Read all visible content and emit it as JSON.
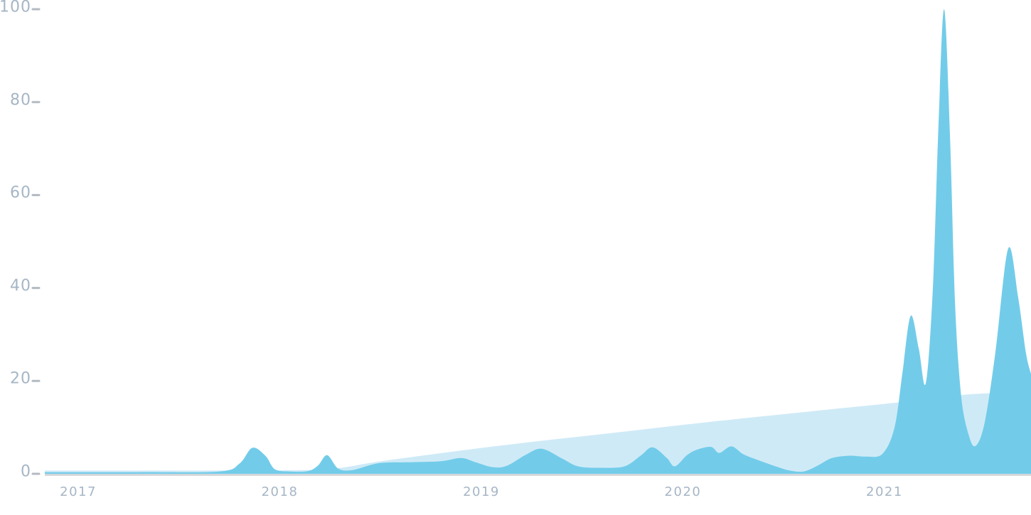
{
  "chart_data": {
    "type": "area",
    "title": "",
    "xlabel": "",
    "ylabel": "",
    "legend": "none",
    "grid": false,
    "x_axis": {
      "xlim": [
        2016.834,
        2021.727
      ],
      "tick_values": [
        2017,
        2018,
        2019,
        2020,
        2021
      ],
      "tick_labels": [
        "2017",
        "2018",
        "2019",
        "2020",
        "2021"
      ]
    },
    "y_axis": {
      "ylim": [
        0,
        100
      ],
      "tick_values": [
        0,
        20,
        40,
        60,
        80,
        100
      ],
      "tick_labels": [
        "0",
        "20",
        "40",
        "60",
        "80",
        "100"
      ]
    },
    "colors": {
      "smooth_series_fill": "#cfeaf7",
      "spiky_series_fill": "#72cce9",
      "axis_line": "#cdd1d4",
      "tick_mark": "#b3bac1",
      "tick_label": "#a6b6c5",
      "background": "#ffffff"
    },
    "series": [
      {
        "name": "smooth-baseline-area",
        "color_key": "smooth_series_fill",
        "points": [
          [
            2016.834,
            0.7
          ],
          [
            2017.5,
            0.7
          ],
          [
            2018.129,
            0.8
          ],
          [
            2018.305,
            1.3
          ],
          [
            2018.517,
            2.8
          ],
          [
            2019.081,
            6.0
          ],
          [
            2019.61,
            8.6
          ],
          [
            2020.139,
            11.2
          ],
          [
            2020.668,
            13.6
          ],
          [
            2021.032,
            15.2
          ],
          [
            2021.233,
            16.2
          ],
          [
            2021.452,
            17.2
          ],
          [
            2021.727,
            17.5
          ]
        ]
      },
      {
        "name": "spiky-area",
        "color_key": "spiky_series_fill",
        "points": [
          [
            2016.834,
            0.35
          ],
          [
            2017.3,
            0.35
          ],
          [
            2017.7,
            0.5
          ],
          [
            2017.8,
            2.2
          ],
          [
            2017.864,
            5.6
          ],
          [
            2017.93,
            3.8
          ],
          [
            2017.975,
            1.0
          ],
          [
            2018.05,
            0.5
          ],
          [
            2018.14,
            0.6
          ],
          [
            2018.19,
            1.8
          ],
          [
            2018.235,
            4.0
          ],
          [
            2018.29,
            1.1
          ],
          [
            2018.36,
            0.8
          ],
          [
            2018.45,
            1.9
          ],
          [
            2018.52,
            2.4
          ],
          [
            2018.66,
            2.5
          ],
          [
            2018.8,
            2.7
          ],
          [
            2018.9,
            3.4
          ],
          [
            2018.97,
            2.5
          ],
          [
            2019.06,
            1.4
          ],
          [
            2019.13,
            1.8
          ],
          [
            2019.22,
            4.1
          ],
          [
            2019.3,
            5.4
          ],
          [
            2019.4,
            3.3
          ],
          [
            2019.48,
            1.6
          ],
          [
            2019.59,
            1.3
          ],
          [
            2019.71,
            1.6
          ],
          [
            2019.79,
            3.9
          ],
          [
            2019.85,
            5.7
          ],
          [
            2019.92,
            3.4
          ],
          [
            2019.96,
            1.6
          ],
          [
            2020.02,
            4.0
          ],
          [
            2020.07,
            5.2
          ],
          [
            2020.14,
            5.8
          ],
          [
            2020.18,
            4.5
          ],
          [
            2020.24,
            5.9
          ],
          [
            2020.3,
            4.2
          ],
          [
            2020.37,
            3.0
          ],
          [
            2020.46,
            1.6
          ],
          [
            2020.53,
            0.7
          ],
          [
            2020.6,
            0.5
          ],
          [
            2020.67,
            1.8
          ],
          [
            2020.74,
            3.4
          ],
          [
            2020.83,
            3.9
          ],
          [
            2020.91,
            3.7
          ],
          [
            2020.99,
            4.3
          ],
          [
            2021.05,
            10
          ],
          [
            2021.09,
            22
          ],
          [
            2021.13,
            34
          ],
          [
            2021.17,
            27
          ],
          [
            2021.205,
            19.5
          ],
          [
            2021.24,
            40
          ],
          [
            2021.268,
            75
          ],
          [
            2021.296,
            100
          ],
          [
            2021.325,
            73
          ],
          [
            2021.35,
            37
          ],
          [
            2021.38,
            17
          ],
          [
            2021.417,
            8.5
          ],
          [
            2021.452,
            6.0
          ],
          [
            2021.497,
            11
          ],
          [
            2021.55,
            26
          ],
          [
            2021.614,
            48.5
          ],
          [
            2021.663,
            38
          ],
          [
            2021.702,
            26
          ],
          [
            2021.727,
            21.5
          ]
        ]
      }
    ]
  }
}
